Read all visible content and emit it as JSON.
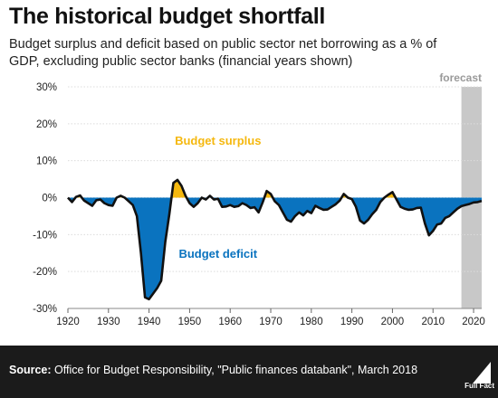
{
  "header": {
    "title": "The historical budget shortfall",
    "subtitle": "Budget surplus and deficit based on public sector net borrowing as a % of GDP, excluding public sector banks (financial years shown)"
  },
  "footer": {
    "source_label": "Source:",
    "source_text": " Office for Budget Responsibility, \"Public finances databank\", March 2018",
    "logo_text": "Full Fact"
  },
  "colors": {
    "surplus": "#f5b80f",
    "deficit": "#0a73bf",
    "line": "#111111",
    "forecast_band": "#c8c8c8",
    "background": "#ffffff",
    "footer": "#1b1b1b"
  },
  "chart_data": {
    "type": "area",
    "ylim": [
      -30,
      30
    ],
    "xlim": [
      1920,
      2022
    ],
    "yticks": [
      -30,
      -20,
      -10,
      0,
      10,
      20,
      30
    ],
    "ytick_labels": [
      "-30%",
      "-20%",
      "-10%",
      "0%",
      "10%",
      "20%",
      "30%"
    ],
    "xticks": [
      1920,
      1930,
      1940,
      1950,
      1960,
      1970,
      1980,
      1990,
      2000,
      2010,
      2020
    ],
    "xtick_labels": [
      "1920",
      "1930",
      "1940",
      "1950",
      "1960",
      "1970",
      "1980",
      "1990",
      "2000",
      "2010",
      "2020"
    ],
    "grid": true,
    "forecast": {
      "start": 2017,
      "end": 2022,
      "label": "forecast"
    },
    "annotations": [
      {
        "text": "Budget surplus",
        "x": 1957,
        "y": 15.5,
        "color": "surplus"
      },
      {
        "text": "Budget deficit",
        "x": 1957,
        "y": -15,
        "color": "deficit"
      }
    ],
    "series": [
      {
        "x": [
          1920,
          1921,
          1922,
          1923,
          1924,
          1925,
          1926,
          1927,
          1928,
          1929,
          1930,
          1931,
          1932,
          1933,
          1934,
          1935,
          1936,
          1937,
          1938,
          1939,
          1940,
          1941,
          1942,
          1943,
          1944,
          1945,
          1946,
          1947,
          1948,
          1949,
          1950,
          1951,
          1952,
          1953,
          1954,
          1955,
          1956,
          1957,
          1958,
          1959,
          1960,
          1961,
          1962,
          1963,
          1964,
          1965,
          1966,
          1967,
          1968,
          1969,
          1970,
          1971,
          1972,
          1973,
          1974,
          1975,
          1976,
          1977,
          1978,
          1979,
          1980,
          1981,
          1982,
          1983,
          1984,
          1985,
          1986,
          1987,
          1988,
          1989,
          1990,
          1991,
          1992,
          1993,
          1994,
          1995,
          1996,
          1997,
          1998,
          1999,
          2000,
          2001,
          2002,
          2003,
          2004,
          2005,
          2006,
          2007,
          2008,
          2009,
          2010,
          2011,
          2012,
          2013,
          2014,
          2015,
          2016,
          2017,
          2018,
          2019,
          2020,
          2021,
          2022
        ],
        "values": [
          0,
          -1.2,
          0.2,
          0.6,
          -0.8,
          -1.5,
          -2.2,
          -0.7,
          -0.5,
          -1.5,
          -2,
          -2.2,
          0,
          0.5,
          0,
          -1,
          -2,
          -5,
          -15,
          -27,
          -27.5,
          -26,
          -24.5,
          -22.5,
          -12,
          -4.5,
          4,
          4.8,
          3.2,
          0.5,
          -1.5,
          -2.5,
          -1.5,
          0,
          -0.5,
          0.5,
          -0.5,
          -0.3,
          -2.5,
          -2.4,
          -2,
          -2.5,
          -2.3,
          -1.5,
          -2,
          -2.8,
          -2.6,
          -4,
          -1.3,
          1.8,
          1,
          -1,
          -2,
          -4,
          -6,
          -6.5,
          -5,
          -4,
          -4.8,
          -3.6,
          -4.2,
          -2.2,
          -2.8,
          -3.3,
          -3.2,
          -2.5,
          -1.8,
          -0.8,
          1,
          0,
          -0.4,
          -2.5,
          -6.2,
          -7,
          -6,
          -4.5,
          -3.3,
          -1.2,
          0,
          0.8,
          1.5,
          -0.5,
          -2.5,
          -3,
          -3.3,
          -3.2,
          -2.8,
          -2.7,
          -7,
          -10.2,
          -9,
          -7.3,
          -7,
          -5.5,
          -5,
          -4,
          -3,
          -2.3,
          -2,
          -1.7,
          -1.3,
          -1.2,
          -0.9
        ]
      }
    ]
  }
}
